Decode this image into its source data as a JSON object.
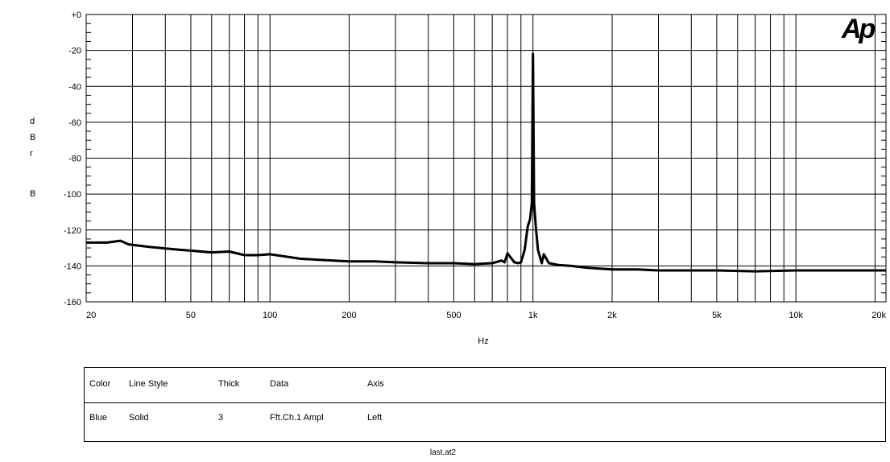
{
  "chart_data": {
    "type": "line",
    "title": "",
    "xlabel": "Hz",
    "ylabel": "dBr B",
    "xscale": "log",
    "xlim": [
      20,
      22000
    ],
    "ylim": [
      -160,
      0
    ],
    "grid": true,
    "x_ticks": [
      20,
      50,
      100,
      200,
      500,
      1000,
      2000,
      5000,
      10000,
      20000
    ],
    "x_tick_labels": [
      "20",
      "50",
      "100",
      "200",
      "500",
      "1k",
      "2k",
      "5k",
      "10k",
      "20k"
    ],
    "y_ticks": [
      0,
      -20,
      -40,
      -60,
      -80,
      -100,
      -120,
      -140,
      -160
    ],
    "y_tick_labels": [
      "+0",
      "-20",
      "-40",
      "-60",
      "-80",
      "-100",
      "-120",
      "-140",
      "-160"
    ],
    "series": [
      {
        "name": "Fft.Ch.1 Ampl",
        "x": [
          20,
          24,
          27,
          29,
          35,
          45,
          50,
          60,
          70,
          80,
          90,
          100,
          130,
          150,
          200,
          250,
          300,
          400,
          500,
          600,
          700,
          760,
          780,
          800,
          850,
          880,
          900,
          930,
          955,
          975,
          990,
          1000,
          1010,
          1025,
          1045,
          1080,
          1100,
          1150,
          1200,
          1250,
          1400,
          1600,
          1800,
          2000,
          2500,
          3000,
          4000,
          5000,
          7000,
          10000,
          15000,
          20000,
          22000
        ],
        "y": [
          -127,
          -127,
          -126,
          -128,
          -129.5,
          -131,
          -131.5,
          -132.5,
          -132,
          -134,
          -134,
          -133.5,
          -136,
          -136.5,
          -137.5,
          -137.5,
          -138,
          -138.5,
          -138.5,
          -139,
          -138.5,
          -137,
          -138,
          -133,
          -138,
          -138.5,
          -138,
          -131,
          -118,
          -114,
          -105,
          -22,
          -105,
          -118,
          -131,
          -138.5,
          -133.5,
          -138.5,
          -139,
          -139.5,
          -140,
          -141,
          -141.5,
          -142,
          -142,
          -142.5,
          -142.5,
          -142.5,
          -143,
          -142.5,
          -142.5,
          -142.5,
          -142.5
        ]
      }
    ],
    "color": "#000000"
  },
  "xlabel_text": "Hz",
  "ylabel_letters": [
    "d",
    "B",
    "r",
    "B"
  ],
  "logo": "Ap",
  "legend": {
    "headers": {
      "color": "Color",
      "line_style": "Line Style",
      "thick": "Thick",
      "data": "Data",
      "axis": "Axis"
    },
    "row": {
      "color": "Blue",
      "line_style": "Solid",
      "thick": "3",
      "data": "Fft.Ch.1 Ampl",
      "axis": "Left"
    }
  },
  "footer": "last.at2"
}
